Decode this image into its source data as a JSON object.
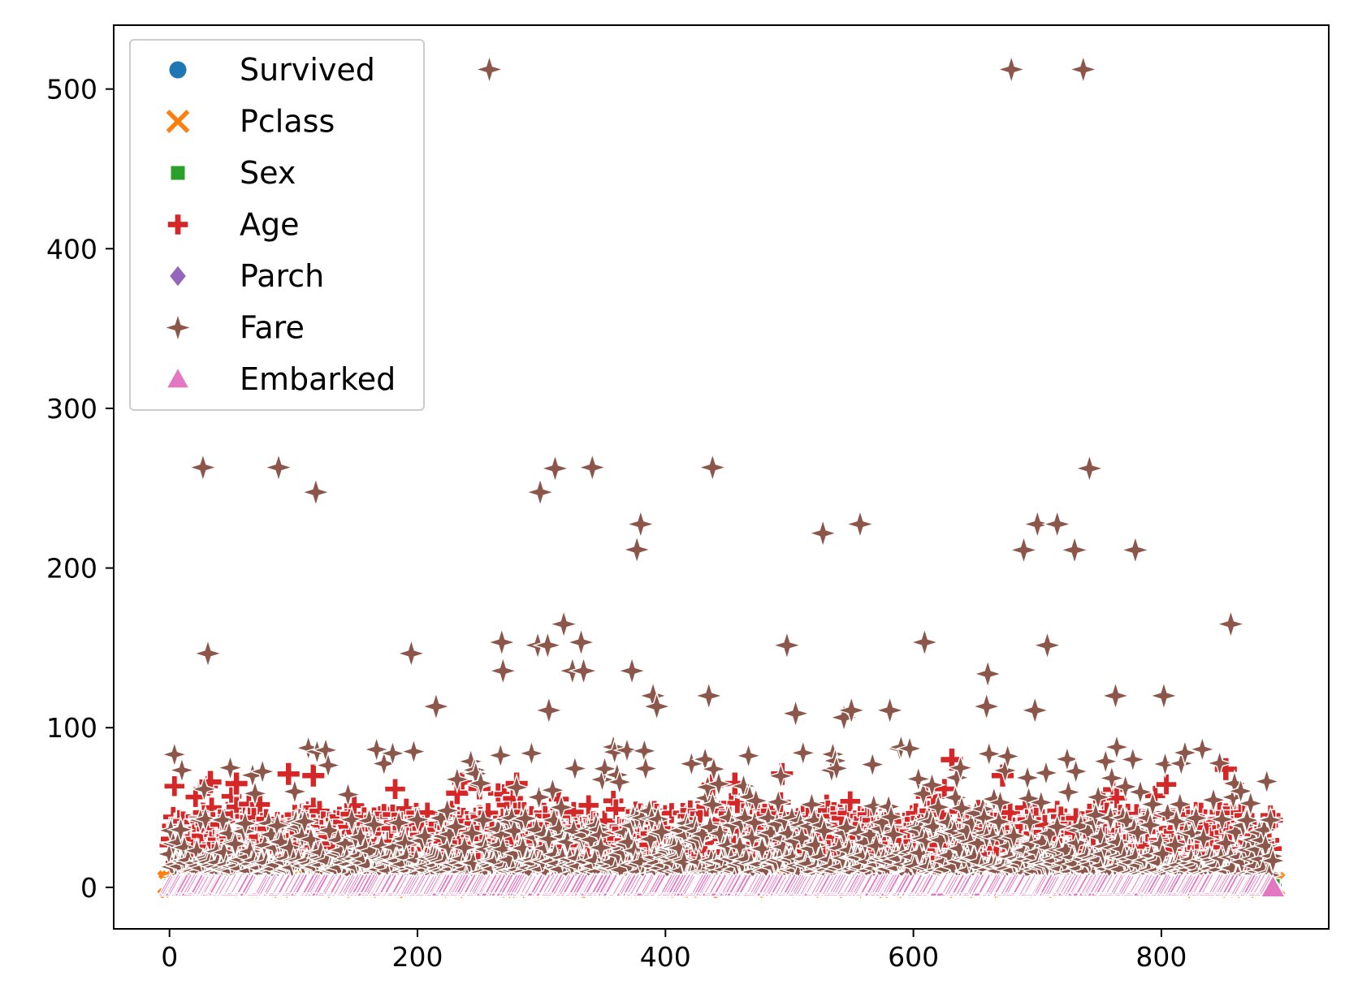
{
  "chart_data": {
    "type": "scatter",
    "title": "",
    "xlabel": "",
    "ylabel": "",
    "xlim": [
      -45,
      935
    ],
    "ylim": [
      -26,
      540
    ],
    "xticks": [
      0,
      200,
      400,
      600,
      800
    ],
    "yticks": [
      0,
      100,
      200,
      300,
      400,
      500
    ],
    "grid": false,
    "legend_position": "top-left",
    "n_points_per_series": 891,
    "series": [
      {
        "name": "Survived",
        "marker": "circle",
        "color": "#1f77b4",
        "value_range": [
          0,
          1
        ]
      },
      {
        "name": "Pclass",
        "marker": "x",
        "color": "#ff7f0e",
        "value_range": [
          1,
          3
        ]
      },
      {
        "name": "Sex",
        "marker": "square",
        "color": "#2ca02c",
        "value_range": [
          0,
          1
        ]
      },
      {
        "name": "Age",
        "marker": "plus",
        "color": "#d62728",
        "value_range": [
          0.4,
          80
        ],
        "notable_points": [
          [
            33,
            66
          ],
          [
            54,
            65
          ],
          [
            96,
            71
          ],
          [
            116,
            70
          ],
          [
            232,
            59
          ],
          [
            250,
            62
          ],
          [
            280,
            65
          ],
          [
            438,
            64
          ],
          [
            456,
            65
          ],
          [
            494,
            71
          ],
          [
            631,
            80
          ],
          [
            672,
            70
          ],
          [
            852,
            74
          ]
        ]
      },
      {
        "name": "Parch",
        "marker": "diamond",
        "color": "#9467bd",
        "value_range": [
          0,
          6
        ]
      },
      {
        "name": "Fare",
        "marker": "star4",
        "color": "#8c564b",
        "value_range": [
          0,
          512.3292
        ],
        "notable_points": [
          [
            27,
            263
          ],
          [
            31,
            146.5
          ],
          [
            88,
            263
          ],
          [
            118,
            247.5
          ],
          [
            195,
            146.5
          ],
          [
            215,
            113.3
          ],
          [
            258,
            512.3
          ],
          [
            268,
            153.5
          ],
          [
            269,
            135.6
          ],
          [
            297,
            151.6
          ],
          [
            299,
            247.5
          ],
          [
            305,
            151.6
          ],
          [
            306,
            110.9
          ],
          [
            311,
            262.4
          ],
          [
            318,
            164.9
          ],
          [
            325,
            135.6
          ],
          [
            332,
            153.5
          ],
          [
            334,
            135.6
          ],
          [
            341,
            263
          ],
          [
            373,
            135.6
          ],
          [
            377,
            211.5
          ],
          [
            380,
            227.5
          ],
          [
            390,
            120
          ],
          [
            393,
            113.3
          ],
          [
            435,
            120
          ],
          [
            438,
            263
          ],
          [
            498,
            151.6
          ],
          [
            505,
            108.9
          ],
          [
            527,
            221.8
          ],
          [
            544,
            106.4
          ],
          [
            550,
            110.9
          ],
          [
            557,
            227.5
          ],
          [
            581,
            110.9
          ],
          [
            609,
            153.5
          ],
          [
            659,
            113.3
          ],
          [
            660,
            133.7
          ],
          [
            679,
            512.3
          ],
          [
            689,
            211.3
          ],
          [
            698,
            110.9
          ],
          [
            700,
            227.5
          ],
          [
            708,
            151.6
          ],
          [
            716,
            227.5
          ],
          [
            730,
            211.3
          ],
          [
            737,
            512.3
          ],
          [
            742,
            262.4
          ],
          [
            763,
            120
          ],
          [
            779,
            211.3
          ],
          [
            802,
            120
          ],
          [
            856,
            164.9
          ]
        ]
      },
      {
        "name": "Embarked",
        "marker": "triangle",
        "color": "#e377c2",
        "value_range": [
          0,
          2
        ],
        "notable_points": [
          [
            890,
            0
          ]
        ]
      }
    ]
  }
}
